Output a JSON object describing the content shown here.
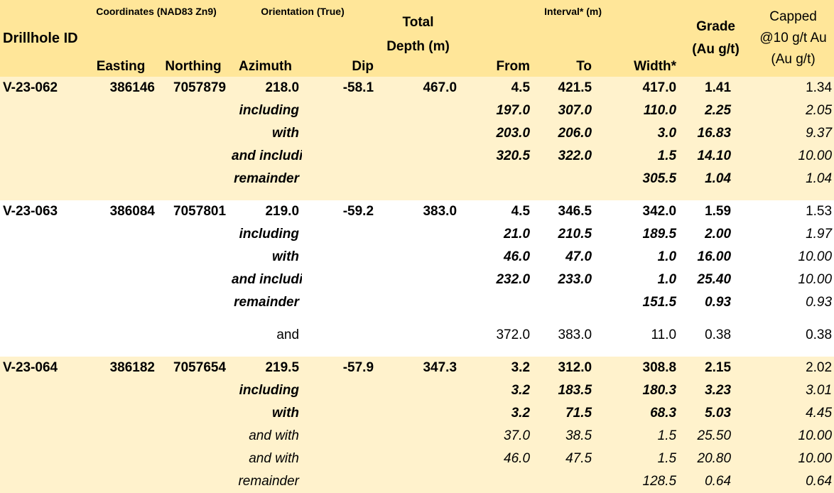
{
  "header": {
    "drillhole_id": "Drillhole ID",
    "coordinates": "Coordinates (NAD83 Zn9)",
    "orientation": "Orientation (True)",
    "total_depth": "Total Depth (m)",
    "interval": "Interval* (m)",
    "grade_line1": "Grade",
    "grade_line2": "(Au g/t)",
    "capped_line1": "Capped",
    "capped_line2": "@10 g/t Au",
    "capped_line3": "(Au g/t)",
    "easting": "Easting",
    "northing": "Northing",
    "azimuth": "Azimuth",
    "dip": "Dip",
    "from": "From",
    "to": "To",
    "width": "Width*"
  },
  "rows": [
    {
      "id": "V-23-062",
      "easting": "386146",
      "northing": "7057879",
      "azimuth": "218.0",
      "label": "",
      "dip": "-58.1",
      "depth": "467.0",
      "from": "4.5",
      "to": "421.5",
      "width": "417.0",
      "grade": "1.41",
      "capped": "1.34"
    },
    {
      "id": "",
      "easting": "",
      "northing": "",
      "azimuth": "",
      "label": "including",
      "dip": "",
      "depth": "",
      "from": "197.0",
      "to": "307.0",
      "width": "110.0",
      "grade": "2.25",
      "capped": "2.05"
    },
    {
      "id": "",
      "easting": "",
      "northing": "",
      "azimuth": "",
      "label": "with",
      "dip": "",
      "depth": "",
      "from": "203.0",
      "to": "206.0",
      "width": "3.0",
      "grade": "16.83",
      "capped": "9.37"
    },
    {
      "id": "",
      "easting": "",
      "northing": "",
      "azimuth": "",
      "label": "and including",
      "dip": "",
      "depth": "",
      "from": "320.5",
      "to": "322.0",
      "width": "1.5",
      "grade": "14.10",
      "capped": "10.00"
    },
    {
      "id": "",
      "easting": "",
      "northing": "",
      "azimuth": "",
      "label": "remainder",
      "dip": "",
      "depth": "",
      "from": "",
      "to": "",
      "width": "305.5",
      "grade": "1.04",
      "capped": "1.04"
    },
    {
      "id": "V-23-063",
      "easting": "386084",
      "northing": "7057801",
      "azimuth": "219.0",
      "label": "",
      "dip": "-59.2",
      "depth": "383.0",
      "from": "4.5",
      "to": "346.5",
      "width": "342.0",
      "grade": "1.59",
      "capped": "1.53"
    },
    {
      "id": "",
      "easting": "",
      "northing": "",
      "azimuth": "",
      "label": "including",
      "dip": "",
      "depth": "",
      "from": "21.0",
      "to": "210.5",
      "width": "189.5",
      "grade": "2.00",
      "capped": "1.97"
    },
    {
      "id": "",
      "easting": "",
      "northing": "",
      "azimuth": "",
      "label": "with",
      "dip": "",
      "depth": "",
      "from": "46.0",
      "to": "47.0",
      "width": "1.0",
      "grade": "16.00",
      "capped": "10.00"
    },
    {
      "id": "",
      "easting": "",
      "northing": "",
      "azimuth": "",
      "label": "and including",
      "dip": "",
      "depth": "",
      "from": "232.0",
      "to": "233.0",
      "width": "1.0",
      "grade": "25.40",
      "capped": "10.00"
    },
    {
      "id": "",
      "easting": "",
      "northing": "",
      "azimuth": "",
      "label": "remainder",
      "dip": "",
      "depth": "",
      "from": "",
      "to": "",
      "width": "151.5",
      "grade": "0.93",
      "capped": "0.93"
    },
    {
      "id": "",
      "easting": "",
      "northing": "",
      "azimuth": "",
      "label": "and",
      "dip": "",
      "depth": "",
      "from": "372.0",
      "to": "383.0",
      "width": "11.0",
      "grade": "0.38",
      "capped": "0.38"
    },
    {
      "id": "V-23-064",
      "easting": "386182",
      "northing": "7057654",
      "azimuth": "219.5",
      "label": "",
      "dip": "-57.9",
      "depth": "347.3",
      "from": "3.2",
      "to": "312.0",
      "width": "308.8",
      "grade": "2.15",
      "capped": "2.02"
    },
    {
      "id": "",
      "easting": "",
      "northing": "",
      "azimuth": "",
      "label": "including",
      "dip": "",
      "depth": "",
      "from": "3.2",
      "to": "183.5",
      "width": "180.3",
      "grade": "3.23",
      "capped": "3.01"
    },
    {
      "id": "",
      "easting": "",
      "northing": "",
      "azimuth": "",
      "label": "with",
      "dip": "",
      "depth": "",
      "from": "3.2",
      "to": "71.5",
      "width": "68.3",
      "grade": "5.03",
      "capped": "4.45"
    },
    {
      "id": "",
      "easting": "",
      "northing": "",
      "azimuth": "",
      "label": "and with",
      "dip": "",
      "depth": "",
      "from": "37.0",
      "to": "38.5",
      "width": "1.5",
      "grade": "25.50",
      "capped": "10.00"
    },
    {
      "id": "",
      "easting": "",
      "northing": "",
      "azimuth": "",
      "label": "and with",
      "dip": "",
      "depth": "",
      "from": "46.0",
      "to": "47.5",
      "width": "1.5",
      "grade": "20.80",
      "capped": "10.00"
    },
    {
      "id": "",
      "easting": "",
      "northing": "",
      "azimuth": "",
      "label": "remainder",
      "dip": "",
      "depth": "",
      "from": "",
      "to": "",
      "width": "128.5",
      "grade": "0.64",
      "capped": "0.64"
    }
  ],
  "colors": {
    "header_bg": "#ffe699",
    "band_bg": "#fff2cc",
    "plain_bg": "#ffffff"
  }
}
